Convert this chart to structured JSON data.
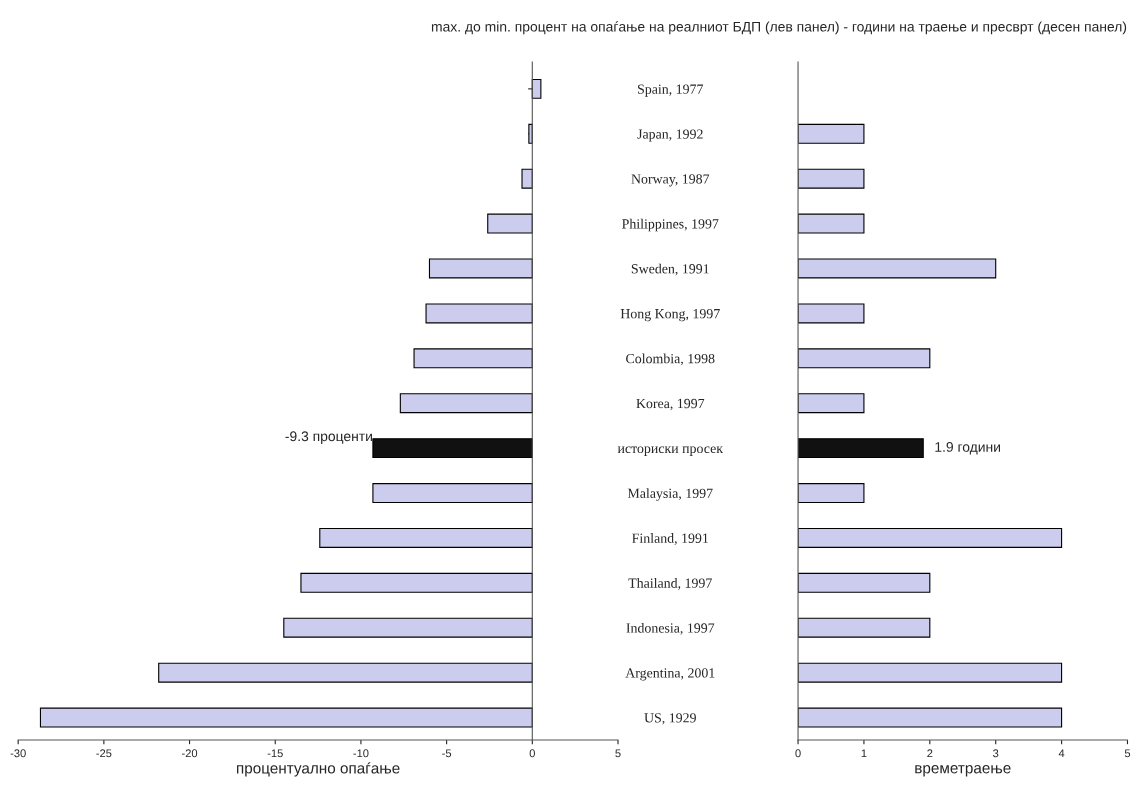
{
  "chart_data": [
    {
      "type": "bar",
      "orientation": "horizontal",
      "title": "max. до min. процент на опаѓање на реалниот БДП (лев панел) - години на траење и пресврт (десен панел)",
      "categories": [
        "Spain, 1977",
        "Japan, 1992",
        "Norway, 1987",
        "Philippines, 1997",
        "Sweden, 1991",
        "Hong Kong, 1997",
        "Colombia, 1998",
        "Korea, 1997",
        "историски просек",
        "Malaysia, 1997",
        "Finland, 1991",
        "Thailand, 1997",
        "Indonesia, 1997",
        "Argentina, 2001",
        "US, 1929"
      ],
      "values": [
        0.5,
        -0.2,
        -0.6,
        -2.6,
        -6.0,
        -6.2,
        -6.9,
        -7.7,
        -9.3,
        -9.3,
        -12.4,
        -13.5,
        -14.5,
        -21.8,
        -28.7
      ],
      "colors": [
        "#ccccee",
        "#ccccee",
        "#ccccee",
        "#ccccee",
        "#ccccee",
        "#ccccee",
        "#ccccee",
        "#ccccee",
        "#111111",
        "#ccccee",
        "#ccccee",
        "#ccccee",
        "#ccccee",
        "#ccccee",
        "#ccccee"
      ],
      "xlim": [
        -30,
        5
      ],
      "xticks": [
        -30,
        -25,
        -20,
        -15,
        -10,
        -5,
        0,
        5
      ],
      "xlabel": "процентуално опаѓање",
      "tick_labels": "x",
      "annotations": [
        {
          "text": "-9.3 проценти",
          "x": -9.3,
          "y": "историски просек"
        }
      ]
    },
    {
      "type": "bar",
      "orientation": "horizontal",
      "categories": [
        "Spain, 1977",
        "Japan, 1992",
        "Norway, 1987",
        "Philippines, 1997",
        "Sweden, 1991",
        "Hong Kong, 1997",
        "Colombia, 1998",
        "Korea, 1997",
        "историски просек",
        "Malaysia, 1997",
        "Finland, 1991",
        "Thailand, 1997",
        "Indonesia, 1997",
        "Argentina, 2001",
        "US, 1929"
      ],
      "values": [
        null,
        1,
        1,
        1,
        3,
        1,
        2,
        1,
        1.9,
        1,
        4,
        2,
        2,
        4,
        4
      ],
      "colors": [
        "#ccccee",
        "#ccccee",
        "#ccccee",
        "#ccccee",
        "#ccccee",
        "#ccccee",
        "#ccccee",
        "#ccccee",
        "#111111",
        "#ccccee",
        "#ccccee",
        "#ccccee",
        "#ccccee",
        "#ccccee",
        "#ccccee"
      ],
      "xlim": [
        0,
        5
      ],
      "xticks": [
        0,
        1,
        2,
        3,
        4,
        5
      ],
      "xlabel": "времетраење",
      "annotations": [
        {
          "text": "1.9 години",
          "x": 1.9,
          "y": "историски просек"
        }
      ]
    }
  ]
}
